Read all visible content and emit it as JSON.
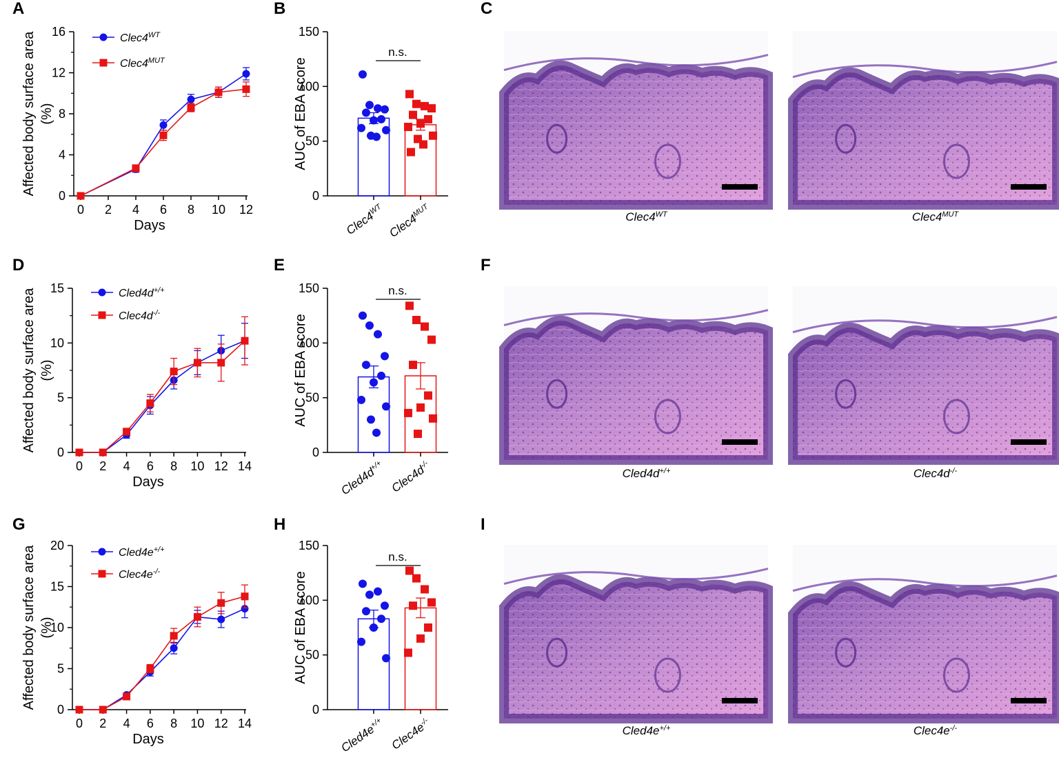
{
  "colors": {
    "wt": "#1414e6",
    "mut": "#e61414",
    "axis": "#000000",
    "scale_bar": "#000000"
  },
  "chart_data": [
    {
      "panel": "A",
      "type": "line",
      "xlabel": "Days",
      "ylabel": "Affected body surface area",
      "ylabel_unit": "(%)",
      "x_ticks": [
        "0",
        "2",
        "4",
        "6",
        "8",
        "10",
        "12"
      ],
      "y_ticks": [
        "0",
        "4",
        "8",
        "12",
        "16"
      ],
      "xlim": [
        0,
        12
      ],
      "ylim": [
        0,
        16
      ],
      "series": [
        {
          "name": "Clec4",
          "sup": "WT",
          "color": "#1414e6",
          "marker": "circle",
          "x": [
            0,
            4,
            6,
            8,
            10,
            12
          ],
          "y": [
            0,
            2.6,
            6.9,
            9.4,
            10.1,
            11.9
          ],
          "err": [
            0,
            0.3,
            0.5,
            0.5,
            0.5,
            0.6
          ]
        },
        {
          "name": "Clec4",
          "sup": "MUT",
          "color": "#e61414",
          "marker": "square",
          "x": [
            0,
            4,
            6,
            8,
            10,
            12
          ],
          "y": [
            0,
            2.7,
            5.9,
            8.6,
            10.1,
            10.4
          ],
          "err": [
            0,
            0.3,
            0.5,
            0.4,
            0.5,
            0.7
          ]
        }
      ]
    },
    {
      "panel": "B",
      "type": "bar",
      "ylabel": "AUC of EBA score",
      "y_ticks": [
        "0",
        "50",
        "100",
        "150"
      ],
      "ylim": [
        0,
        150
      ],
      "significance": "n.s.",
      "groups": [
        {
          "name": "Clec4",
          "sup": "WT",
          "color": "#1414e6",
          "marker": "circle",
          "mean": 71,
          "sem": 5,
          "points": [
            111,
            83,
            80,
            79,
            76,
            70,
            69,
            62,
            60,
            55,
            54
          ]
        },
        {
          "name": "Clec4",
          "sup": "MUT",
          "color": "#e61414",
          "marker": "square",
          "mean": 65,
          "sem": 5,
          "points": [
            93,
            84,
            82,
            80,
            74,
            70,
            66,
            63,
            55,
            52,
            47,
            40
          ]
        }
      ]
    },
    {
      "panel": "D",
      "type": "line",
      "xlabel": "Days",
      "ylabel": "Affected body surface area",
      "ylabel_unit": "(%)",
      "x_ticks": [
        "0",
        "2",
        "4",
        "6",
        "8",
        "10",
        "12",
        "14"
      ],
      "y_ticks": [
        "0",
        "5",
        "10",
        "15"
      ],
      "xlim": [
        0,
        14
      ],
      "ylim": [
        0,
        15
      ],
      "series": [
        {
          "name": "Cled4d",
          "sup": "+/+",
          "color": "#1414e6",
          "marker": "circle",
          "x": [
            0,
            2,
            4,
            6,
            8,
            10,
            12,
            14
          ],
          "y": [
            0,
            0,
            1.6,
            4.3,
            6.6,
            8.2,
            9.3,
            10.2
          ],
          "err": [
            0,
            0,
            0.3,
            0.8,
            0.8,
            1.1,
            1.4,
            1.6
          ]
        },
        {
          "name": "Clec4d",
          "sup": "-/-",
          "color": "#e61414",
          "marker": "square",
          "x": [
            0,
            2,
            4,
            6,
            8,
            10,
            12,
            14
          ],
          "y": [
            0,
            0,
            1.9,
            4.5,
            7.4,
            8.2,
            8.2,
            10.2
          ],
          "err": [
            0,
            0,
            0.3,
            0.8,
            1.2,
            1.3,
            1.7,
            2.2
          ]
        }
      ]
    },
    {
      "panel": "E",
      "type": "bar",
      "ylabel": "AUC of EBA score",
      "y_ticks": [
        "0",
        "50",
        "100",
        "150"
      ],
      "ylim": [
        0,
        150
      ],
      "significance": "n.s.",
      "groups": [
        {
          "name": "Cled4d",
          "sup": "+/+",
          "color": "#1414e6",
          "marker": "circle",
          "mean": 69,
          "sem": 10,
          "points": [
            125,
            116,
            108,
            88,
            80,
            70,
            64,
            48,
            42,
            30,
            18
          ]
        },
        {
          "name": "Clec4d",
          "sup": "-/-",
          "color": "#e61414",
          "marker": "square",
          "mean": 70,
          "sem": 12,
          "points": [
            134,
            121,
            115,
            103,
            80,
            52,
            41,
            36,
            31,
            17
          ]
        }
      ]
    },
    {
      "panel": "G",
      "type": "line",
      "xlabel": "Days",
      "ylabel": "Affected body surface area",
      "ylabel_unit": "(%)",
      "x_ticks": [
        "0",
        "2",
        "4",
        "6",
        "8",
        "10",
        "12",
        "14"
      ],
      "y_ticks": [
        "0",
        "5",
        "10",
        "15",
        "20"
      ],
      "xlim": [
        0,
        14
      ],
      "ylim": [
        0,
        20
      ],
      "series": [
        {
          "name": "Cled4e",
          "sup": "+/+",
          "color": "#1414e6",
          "marker": "circle",
          "x": [
            0,
            2,
            4,
            6,
            8,
            10,
            12,
            14
          ],
          "y": [
            0,
            0,
            1.8,
            4.6,
            7.5,
            11.3,
            11.0,
            12.3
          ],
          "err": [
            0,
            0,
            0.2,
            0.5,
            0.7,
            0.8,
            1.0,
            1.1
          ]
        },
        {
          "name": "Clec4e",
          "sup": "-/-",
          "color": "#e61414",
          "marker": "square",
          "x": [
            0,
            2,
            4,
            6,
            8,
            10,
            12,
            14
          ],
          "y": [
            0,
            0,
            1.6,
            5.0,
            9.0,
            11.3,
            13.0,
            13.8
          ],
          "err": [
            0,
            0,
            0.2,
            0.5,
            0.9,
            1.2,
            1.3,
            1.4
          ]
        }
      ]
    },
    {
      "panel": "H",
      "type": "bar",
      "ylabel": "AUC of EBA score",
      "y_ticks": [
        "0",
        "50",
        "100",
        "150"
      ],
      "ylim": [
        0,
        150
      ],
      "significance": "n.s.",
      "groups": [
        {
          "name": "Cled4e",
          "sup": "+/+",
          "color": "#1414e6",
          "marker": "circle",
          "mean": 83,
          "sem": 8,
          "points": [
            115,
            105,
            108,
            95,
            90,
            83,
            75,
            62,
            47
          ]
        },
        {
          "name": "Clec4e",
          "sup": "-/-",
          "color": "#e61414",
          "marker": "square",
          "mean": 93,
          "sem": 9,
          "points": [
            127,
            120,
            110,
            98,
            95,
            75,
            65,
            52
          ]
        }
      ]
    }
  ],
  "histology": [
    {
      "panel": "C",
      "left_caption": {
        "name": "Clec4",
        "sup": "WT"
      },
      "right_caption": {
        "name": "Clec4",
        "sup": "MUT"
      }
    },
    {
      "panel": "F",
      "left_caption": {
        "name": "Cled4d",
        "sup": "+/+"
      },
      "right_caption": {
        "name": "Clec4d",
        "sup": "-/-"
      }
    },
    {
      "panel": "I",
      "left_caption": {
        "name": "Cled4e",
        "sup": "+/+"
      },
      "right_caption": {
        "name": "Clec4e",
        "sup": "-/-"
      }
    }
  ]
}
